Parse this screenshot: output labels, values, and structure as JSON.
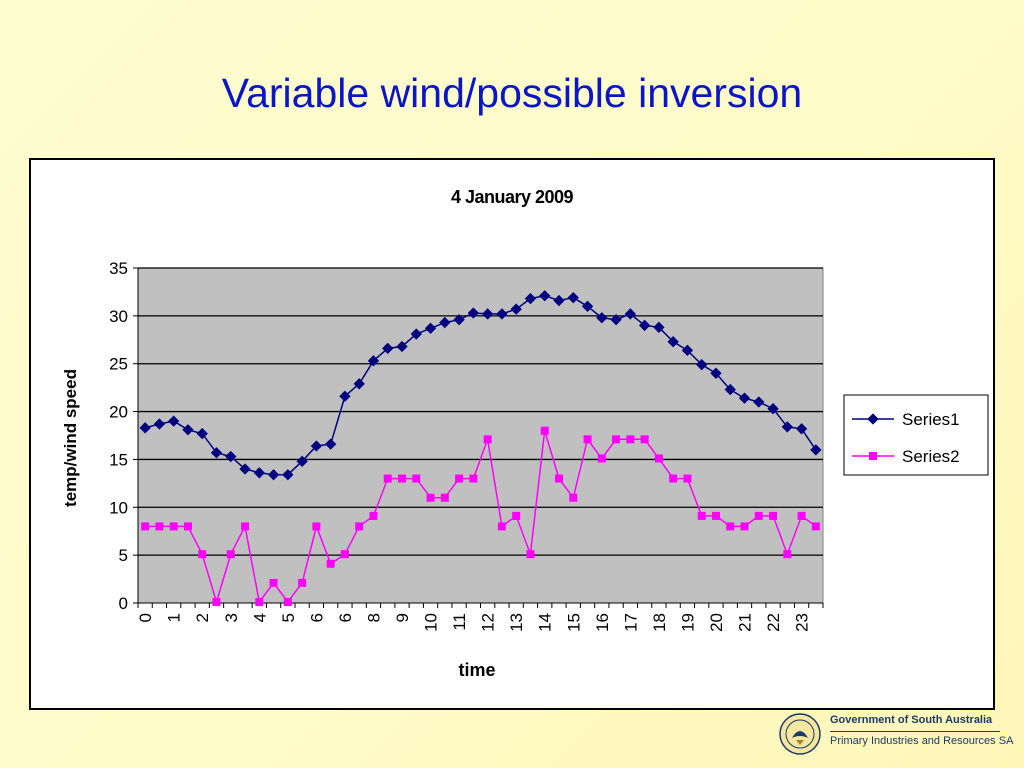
{
  "slide": {
    "title": "Variable wind/possible inversion"
  },
  "logo": {
    "government": "Government of South Australia",
    "department": "Primary Industries and Resources SA",
    "seal_text": "SOUTH AUSTRALIA"
  },
  "colors": {
    "plot_bg": "#c0c0c0",
    "series1": "#000080",
    "series2": "#ff00ff",
    "title_blue": "#0a14c8"
  },
  "chart_data": {
    "type": "line",
    "title": "4 January 2009",
    "xlabel": "time",
    "ylabel": "temp/wind speed",
    "ylim": [
      0,
      35
    ],
    "yticks": [
      0,
      5,
      10,
      15,
      20,
      25,
      30,
      35
    ],
    "grid": true,
    "legend": "right",
    "x_tick_labels": [
      "0",
      "1",
      "2",
      "3",
      "4",
      "5",
      "6",
      "6",
      "8",
      "9",
      "10",
      "11",
      "12",
      "13",
      "14",
      "15",
      "16",
      "17",
      "18",
      "19",
      "20",
      "21",
      "22",
      "23"
    ],
    "series": [
      {
        "name": "Series1",
        "marker": "diamond",
        "values": [
          18.3,
          18.7,
          19.0,
          18.1,
          17.7,
          15.7,
          15.3,
          14.0,
          13.6,
          13.4,
          13.4,
          14.8,
          16.4,
          16.6,
          21.6,
          22.9,
          25.3,
          26.6,
          26.8,
          28.1,
          28.7,
          29.3,
          29.6,
          30.3,
          30.2,
          30.2,
          30.7,
          31.8,
          32.1,
          31.6,
          31.9,
          31.0,
          29.8,
          29.6,
          30.2,
          29.0,
          28.8,
          27.3,
          26.4,
          24.9,
          24.0,
          22.3,
          21.4,
          21.0,
          20.3,
          18.4,
          18.2,
          16.0
        ]
      },
      {
        "name": "Series2",
        "marker": "square",
        "values": [
          8,
          8,
          8,
          8,
          5.1,
          0.1,
          5.1,
          8,
          0.1,
          2.1,
          0.1,
          2.1,
          8,
          4.1,
          5.1,
          8,
          9.1,
          13,
          13,
          13,
          11,
          11,
          13,
          13,
          17.1,
          8,
          9.1,
          5.1,
          18,
          13,
          11,
          17.1,
          15.1,
          17.1,
          17.1,
          17.1,
          15.1,
          13,
          13,
          9.1,
          9.1,
          8,
          8,
          9.1,
          9.1,
          5.1,
          9.1,
          8
        ]
      }
    ]
  }
}
